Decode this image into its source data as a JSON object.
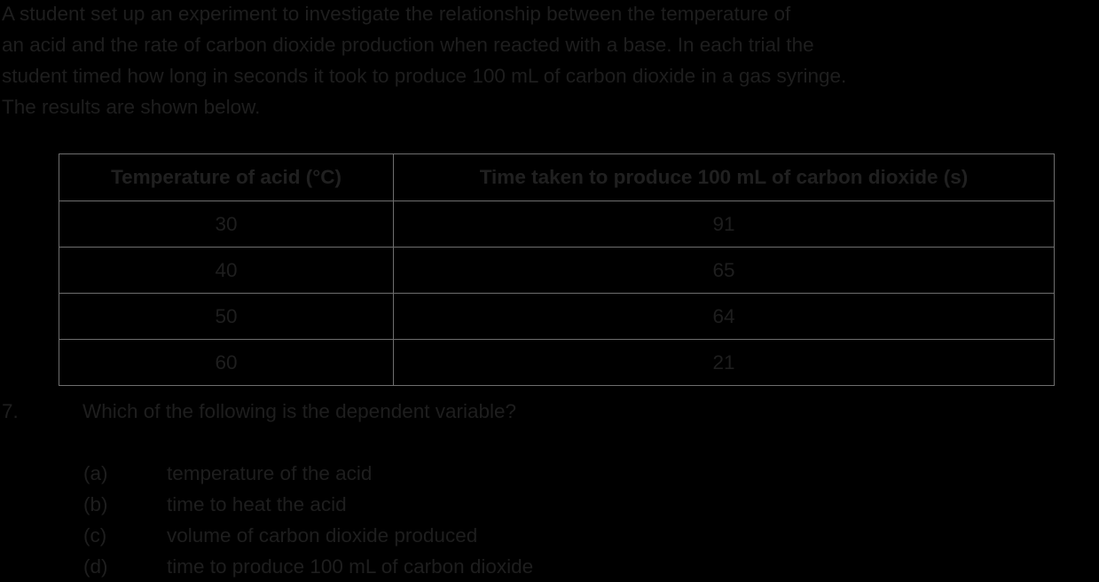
{
  "intro": {
    "lines": [
      "A student set up an experiment to investigate the relationship between the temperature of",
      "an acid and the rate of carbon dioxide production when reacted with a base. In each trial the",
      "student timed how long in seconds it took to produce 100 mL of carbon dioxide in a gas syringe.",
      "The results are shown below."
    ]
  },
  "table": {
    "headers": [
      "Temperature of acid (°C)",
      "Time taken to produce 100 mL of carbon dioxide (s)"
    ],
    "rows": [
      [
        "30",
        "91"
      ],
      [
        "40",
        "65"
      ],
      [
        "50",
        "64"
      ],
      [
        "60",
        "21"
      ]
    ]
  },
  "question": {
    "number": "7.",
    "text": "Which of the following is the dependent variable?"
  },
  "options": [
    {
      "letter": "(a)",
      "text": "temperature of the acid"
    },
    {
      "letter": "(b)",
      "text": "time to heat the acid"
    },
    {
      "letter": "(c)",
      "text": "volume of carbon dioxide produced"
    },
    {
      "letter": "(d)",
      "text": "time to produce 100 mL of carbon dioxide"
    }
  ]
}
